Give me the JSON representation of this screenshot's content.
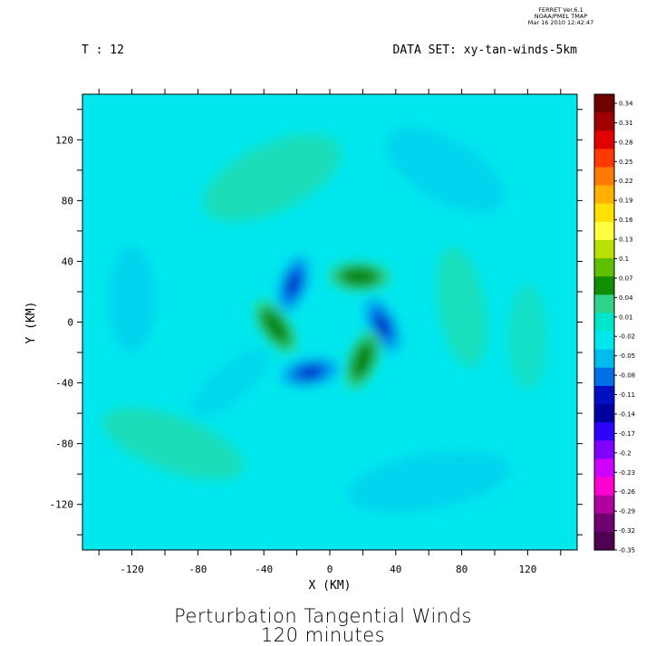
{
  "stamp": {
    "line1": "FERRET Ver.6.1",
    "line2": "NOAA/PMEL TMAP",
    "line3": "Mar 16 2010 12:42:47"
  },
  "header": {
    "time_label": "T : 12",
    "dataset_label": "DATA SET: xy-tan-winds-5km"
  },
  "chart_data": {
    "type": "heatmap",
    "title": "Perturbation Tangential Winds",
    "subtitle": "120 minutes",
    "xlabel": "X (KM)",
    "ylabel": "Y (KM)",
    "xlim": [
      -150,
      150
    ],
    "ylim": [
      -150,
      150
    ],
    "x_ticks": [
      -120,
      -80,
      -40,
      0,
      40,
      80,
      120
    ],
    "y_ticks": [
      -120,
      -80,
      -40,
      0,
      40,
      80,
      120
    ],
    "colorbar": {
      "labels": [
        "0.34",
        "0.31",
        "0.28",
        "0.25",
        "0.22",
        "0.19",
        "0.16",
        "0.13",
        "0.1",
        "0.07",
        "0.04",
        "0.01",
        "-0.02",
        "-0.05",
        "-0.08",
        "-0.11",
        "-0.14",
        "-0.17",
        "-0.2",
        "-0.23",
        "-0.26",
        "-0.29",
        "-0.32",
        "-0.35"
      ],
      "colors": [
        "#6e0000",
        "#a00000",
        "#e00000",
        "#ff3a00",
        "#ff7a00",
        "#ffb000",
        "#ffe000",
        "#ffff40",
        "#b8e000",
        "#5fc000",
        "#108f00",
        "#2fd38a",
        "#00e6cc",
        "#00e8ee",
        "#00bbee",
        "#0070e8",
        "#0010c0",
        "#0000a0",
        "#3000ff",
        "#8000ff",
        "#d000ff",
        "#ff00d0",
        "#b000a0",
        "#700070",
        "#500050"
      ]
    },
    "background_value": -0.02,
    "features": [
      {
        "kind": "negative",
        "x": -22,
        "y": 25,
        "value": -0.14
      },
      {
        "kind": "positive",
        "x": 18,
        "y": 30,
        "value": 0.07
      },
      {
        "kind": "negative",
        "x": 32,
        "y": -2,
        "value": -0.14
      },
      {
        "kind": "positive",
        "x": 20,
        "y": -25,
        "value": 0.07
      },
      {
        "kind": "negative",
        "x": -12,
        "y": -33,
        "value": -0.14
      },
      {
        "kind": "positive",
        "x": -33,
        "y": -3,
        "value": 0.07
      }
    ]
  }
}
